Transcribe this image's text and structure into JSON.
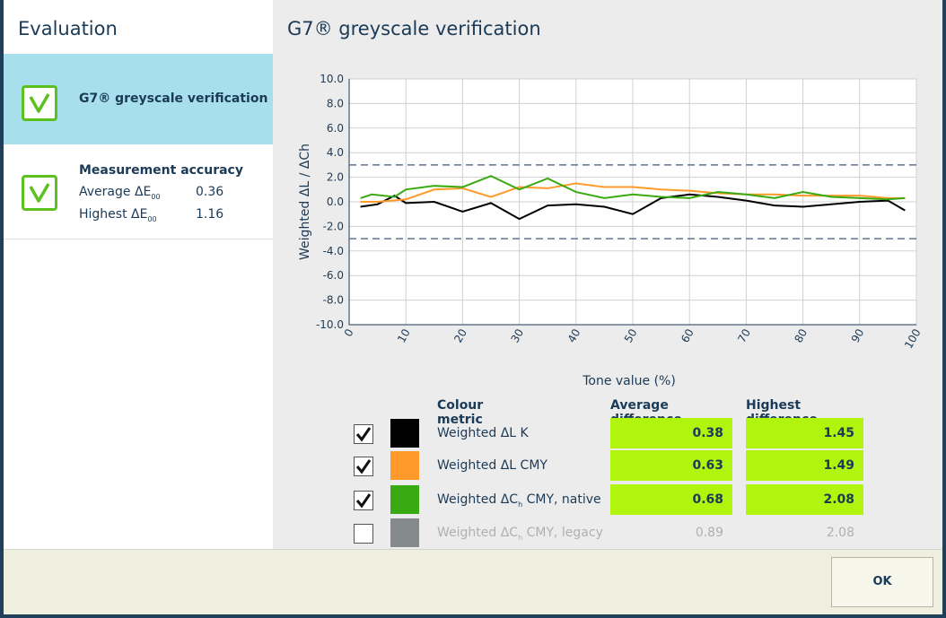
{
  "left": {
    "title": "Evaluation",
    "g7_card": {
      "title": "G7® greyscale verification"
    },
    "accuracy_card": {
      "title": "Measurement accuracy",
      "avg_label": "Average ΔE",
      "avg_sub": "00",
      "avg_value": "0.36",
      "high_label": "Highest ΔE",
      "high_sub": "00",
      "high_value": "1.16"
    }
  },
  "right": {
    "title": "G7® greyscale verification"
  },
  "chart_data": {
    "type": "line",
    "xlabel": "Tone value (%)",
    "ylabel": "Weighted ΔL / ΔCh",
    "xlim": [
      0,
      100
    ],
    "ylim": [
      -10,
      10
    ],
    "x_ticks": [
      "0",
      "10",
      "20",
      "30",
      "40",
      "50",
      "60",
      "70",
      "80",
      "90",
      "100"
    ],
    "y_ticks": [
      "10.0",
      "8.0",
      "6.0",
      "4.0",
      "2.0",
      "0.0",
      "-2.0",
      "-4.0",
      "-6.0",
      "-8.0",
      "-10.0"
    ],
    "thresholds": [
      3,
      -3
    ],
    "grid": true,
    "series": [
      {
        "color": "#000000",
        "x": [
          2,
          5,
          8,
          10,
          15,
          20,
          25,
          30,
          35,
          40,
          45,
          50,
          55,
          60,
          65,
          70,
          75,
          80,
          85,
          90,
          95,
          98
        ],
        "y": [
          -0.4,
          -0.2,
          0.5,
          -0.1,
          0,
          -0.8,
          -0.1,
          -1.4,
          -0.3,
          -0.2,
          -0.4,
          -1.0,
          0.3,
          0.6,
          0.4,
          0.1,
          -0.3,
          -0.4,
          -0.2,
          0,
          0.1,
          -0.7
        ]
      },
      {
        "color": "#ff9a2a",
        "x": [
          2,
          5,
          10,
          15,
          20,
          25,
          30,
          35,
          40,
          45,
          50,
          55,
          60,
          65,
          70,
          75,
          80,
          85,
          90,
          95,
          98
        ],
        "y": [
          0.0,
          0.0,
          0.2,
          1.0,
          1.1,
          0.4,
          1.2,
          1.1,
          1.5,
          1.2,
          1.2,
          1.0,
          0.9,
          0.7,
          0.6,
          0.6,
          0.5,
          0.5,
          0.5,
          0.3,
          0.3
        ]
      },
      {
        "color": "#3aaa13",
        "x": [
          2,
          4,
          8,
          10,
          15,
          20,
          25,
          30,
          35,
          40,
          45,
          50,
          55,
          60,
          65,
          70,
          75,
          80,
          85,
          90,
          95,
          98
        ],
        "y": [
          0.3,
          0.6,
          0.4,
          1.0,
          1.3,
          1.2,
          2.1,
          1.0,
          1.9,
          0.8,
          0.3,
          0.6,
          0.4,
          0.3,
          0.8,
          0.6,
          0.3,
          0.8,
          0.4,
          0.3,
          0.2,
          0.3
        ]
      }
    ]
  },
  "table": {
    "headers": {
      "metric": "Colour metric",
      "avg": "Average difference",
      "high": "Highest difference"
    },
    "rows": [
      {
        "label": "Weighted ΔL K",
        "sub": "",
        "label_tail": "",
        "checked": true,
        "color": "#000000",
        "avg": "0.38",
        "high": "1.45"
      },
      {
        "label": "Weighted ΔL CMY",
        "sub": "",
        "label_tail": "",
        "checked": true,
        "color": "#ff9a2a",
        "avg": "0.63",
        "high": "1.49"
      },
      {
        "label": "Weighted ΔC",
        "sub": "h",
        "label_tail": " CMY, native",
        "checked": true,
        "color": "#3aaa13",
        "avg": "0.68",
        "high": "2.08"
      },
      {
        "label": "Weighted ΔC",
        "sub": "h",
        "label_tail": " CMY, legacy",
        "checked": false,
        "color": "#858a8c",
        "avg": "0.89",
        "high": "2.08"
      }
    ]
  },
  "footer": {
    "ok_label": "OK"
  },
  "colors": {
    "accent_green": "#5cc11e",
    "highlight": "#b1f40d",
    "selected_card": "#a8dfec",
    "text": "#1b3a57"
  }
}
